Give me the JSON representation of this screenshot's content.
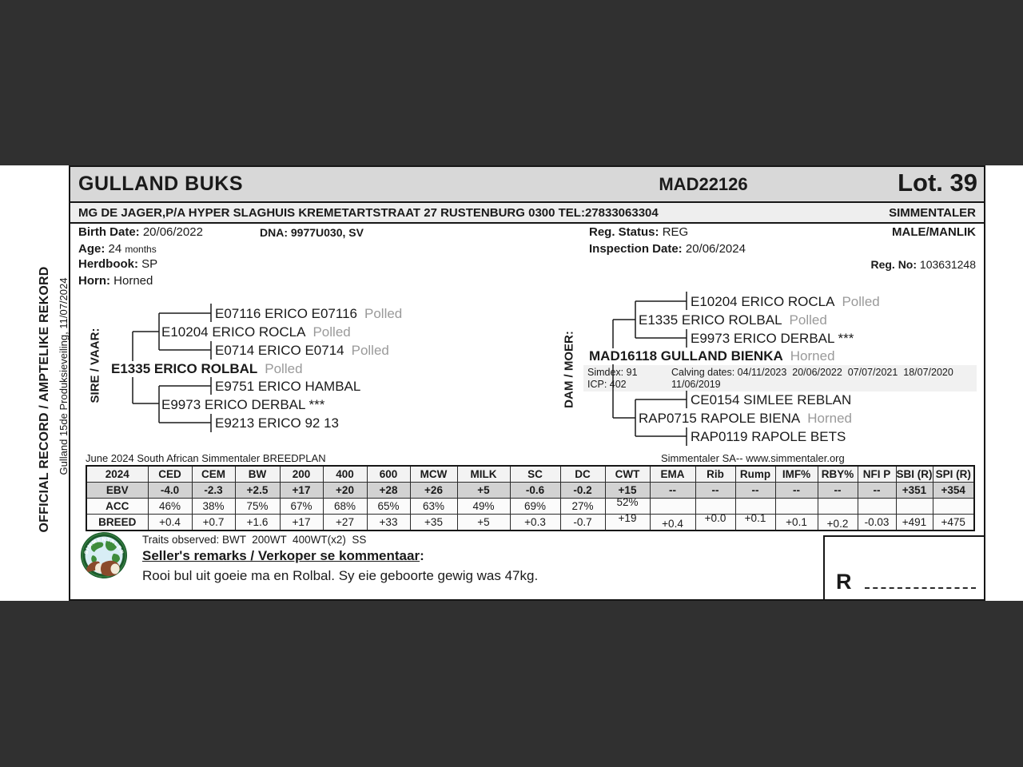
{
  "side": {
    "primary": "OFFICIAL RECORD / AMPTELIKE REKORD",
    "secondary": "Gulland 15de Produksieveiling, 11/07/2024"
  },
  "header": {
    "animal_name": "GULLAND BUKS",
    "animal_id": "MAD22126",
    "lot": "Lot. 39",
    "owner_line": "MG DE JAGER,P/A HYPER SLAGHUIS KREMETARTSTRAAT 27 RUSTENBURG 0300 TEL:27833063304",
    "breed": "SIMMENTALER"
  },
  "details": {
    "birth_date_label": "Birth Date:",
    "birth_date": "20/06/2022",
    "dna_label": "DNA:",
    "dna": "9977U030, SV",
    "age_label": "Age:",
    "age_value": "24",
    "age_unit": "months",
    "herdbook_label": "Herdbook:",
    "herdbook": "SP",
    "horn_label": "Horn:",
    "horn": "Horned",
    "reg_status_label": "Reg. Status:",
    "reg_status": "REG",
    "inspection_label": "Inspection Date:",
    "inspection_date": "20/06/2024",
    "sex": "MALE/MANLIK",
    "reg_no_label": "Reg. No:",
    "reg_no": "103631248"
  },
  "sire_tree": {
    "label": "SIRE / VAAR:",
    "nodes": {
      "gp1": {
        "name": "E07116 ERICO E07116",
        "tag": "Polled"
      },
      "p1": {
        "name": "E10204 ERICO ROCLA",
        "tag": "Polled"
      },
      "gp2": {
        "name": "E0714 ERICO E0714",
        "tag": "Polled"
      },
      "root": {
        "name": "E1335 ERICO ROLBAL",
        "tag": "Polled"
      },
      "gp3": {
        "name": "E9751 ERICO HAMBAL",
        "tag": ""
      },
      "p2": {
        "name": "E9973 ERICO DERBAL ***",
        "tag": ""
      },
      "gp4": {
        "name": "E9213 ERICO 92 13",
        "tag": ""
      }
    }
  },
  "dam_tree": {
    "label": "DAM / MOER:",
    "nodes": {
      "gp1": {
        "name": "E10204 ERICO ROCLA",
        "tag": "Polled"
      },
      "p1": {
        "name": "E1335 ERICO ROLBAL",
        "tag": "Polled"
      },
      "gp2": {
        "name": "E9973 ERICO DERBAL ***",
        "tag": ""
      },
      "root": {
        "name": "MAD16118 GULLAND BIENKA",
        "tag": "Horned"
      },
      "gp3": {
        "name": "CE0154 SIMLEE REBLAN",
        "tag": ""
      },
      "p2": {
        "name": "RAP0715 RAPOLE BIENA",
        "tag": "Horned"
      },
      "gp4": {
        "name": "RAP0119 RAPOLE BETS",
        "tag": ""
      }
    },
    "stats": {
      "simdex": "Simdex: 91",
      "icp": "ICP: 402",
      "calving_line1": "Calving dates: 04/11/2023  20/06/2022  07/07/2021  18/07/2020",
      "calving_line2": "11/06/2019"
    }
  },
  "breedplan": {
    "left_caption": "June 2024 South African Simmentaler BREEDPLAN",
    "right_caption": "Simmentaler SA-- www.simmentaler.org",
    "columns": [
      "2024",
      "CED",
      "CEM",
      "BW",
      "200",
      "400",
      "600",
      "MCW",
      "MILK",
      "SC",
      "DC",
      "CWT",
      "EMA",
      "Rib",
      "Rump",
      "IMF%",
      "RBY%",
      "NFI P",
      "SBI (R)",
      "SPI (R)"
    ],
    "rows": [
      {
        "label": "EBV",
        "values": [
          "-4.0",
          "-2.3",
          "+2.5",
          "+17",
          "+20",
          "+28",
          "+26",
          "+5",
          "-0.6",
          "-0.2",
          "+15",
          "--",
          "--",
          "--",
          "--",
          "--",
          "--",
          "+351",
          "+354"
        ]
      },
      {
        "label": "ACC",
        "values": [
          "46%",
          "38%",
          "75%",
          "67%",
          "68%",
          "65%",
          "63%",
          "49%",
          "69%",
          "27%",
          "52%",
          "",
          "",
          "",
          "",
          "",
          "",
          "",
          ""
        ]
      },
      {
        "label": "BREED",
        "values": [
          "+0.4",
          "+0.7",
          "+1.6",
          "+17",
          "+27",
          "+33",
          "+35",
          "+5",
          "+0.3",
          "-0.7",
          "+19",
          "+0.4",
          "+0.0",
          "+0.1",
          "+0.1",
          "+0.2",
          "-0.03",
          "+491",
          "+475"
        ]
      }
    ]
  },
  "footer": {
    "traits": "Traits observed: BWT  200WT  400WT(x2)  SS",
    "remarks_heading": "Seller's remarks / Verkoper se kommentaar",
    "remarks_colon": ":",
    "remarks": "Rooi bul uit goeie ma en Rolbal. Sy eie geboorte gewig was 47kg.",
    "price_prefix": "R",
    "logo_text": "SIMMENTALER"
  },
  "colors": {
    "background": "#303030",
    "title_bar": "#d8d8d8",
    "owner_bar": "#eeeeee",
    "ebv_row": "#d2d2d2",
    "tag_gray": "#9a9a9a",
    "logo_green": "#1c5a2d"
  }
}
